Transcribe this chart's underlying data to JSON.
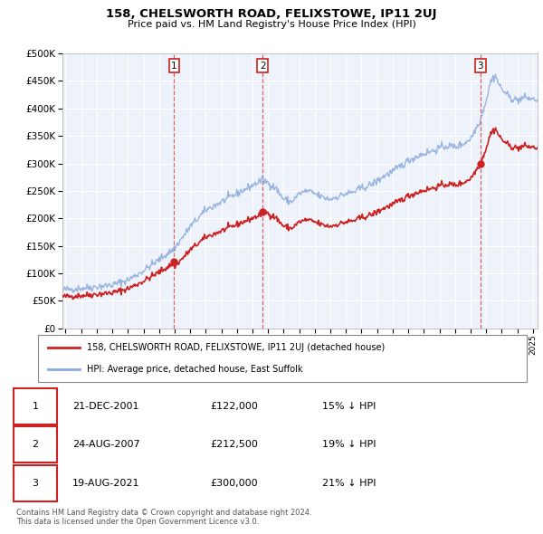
{
  "title": "158, CHELSWORTH ROAD, FELIXSTOWE, IP11 2UJ",
  "subtitle": "Price paid vs. HM Land Registry's House Price Index (HPI)",
  "ylim": [
    0,
    500000
  ],
  "xlim_start": 1994.8,
  "xlim_end": 2025.3,
  "sale_dates_decimal": [
    2001.97,
    2007.65,
    2021.63
  ],
  "sale_prices": [
    122000,
    212500,
    300000
  ],
  "sale_labels": [
    "1",
    "2",
    "3"
  ],
  "sale_info": [
    {
      "label": "1",
      "date": "21-DEC-2001",
      "price": "£122,000",
      "pct": "15% ↓ HPI"
    },
    {
      "label": "2",
      "date": "24-AUG-2007",
      "price": "£212,500",
      "pct": "19% ↓ HPI"
    },
    {
      "label": "3",
      "date": "19-AUG-2021",
      "price": "£300,000",
      "pct": "21% ↓ HPI"
    }
  ],
  "legend_line1": "158, CHELSWORTH ROAD, FELIXSTOWE, IP11 2UJ (detached house)",
  "legend_line2": "HPI: Average price, detached house, East Suffolk",
  "footer1": "Contains HM Land Registry data © Crown copyright and database right 2024.",
  "footer2": "This data is licensed under the Open Government Licence v3.0.",
  "red_color": "#cc2222",
  "blue_color": "#88aadd",
  "background_color": "#eef2fa",
  "grid_color": "#ffffff"
}
